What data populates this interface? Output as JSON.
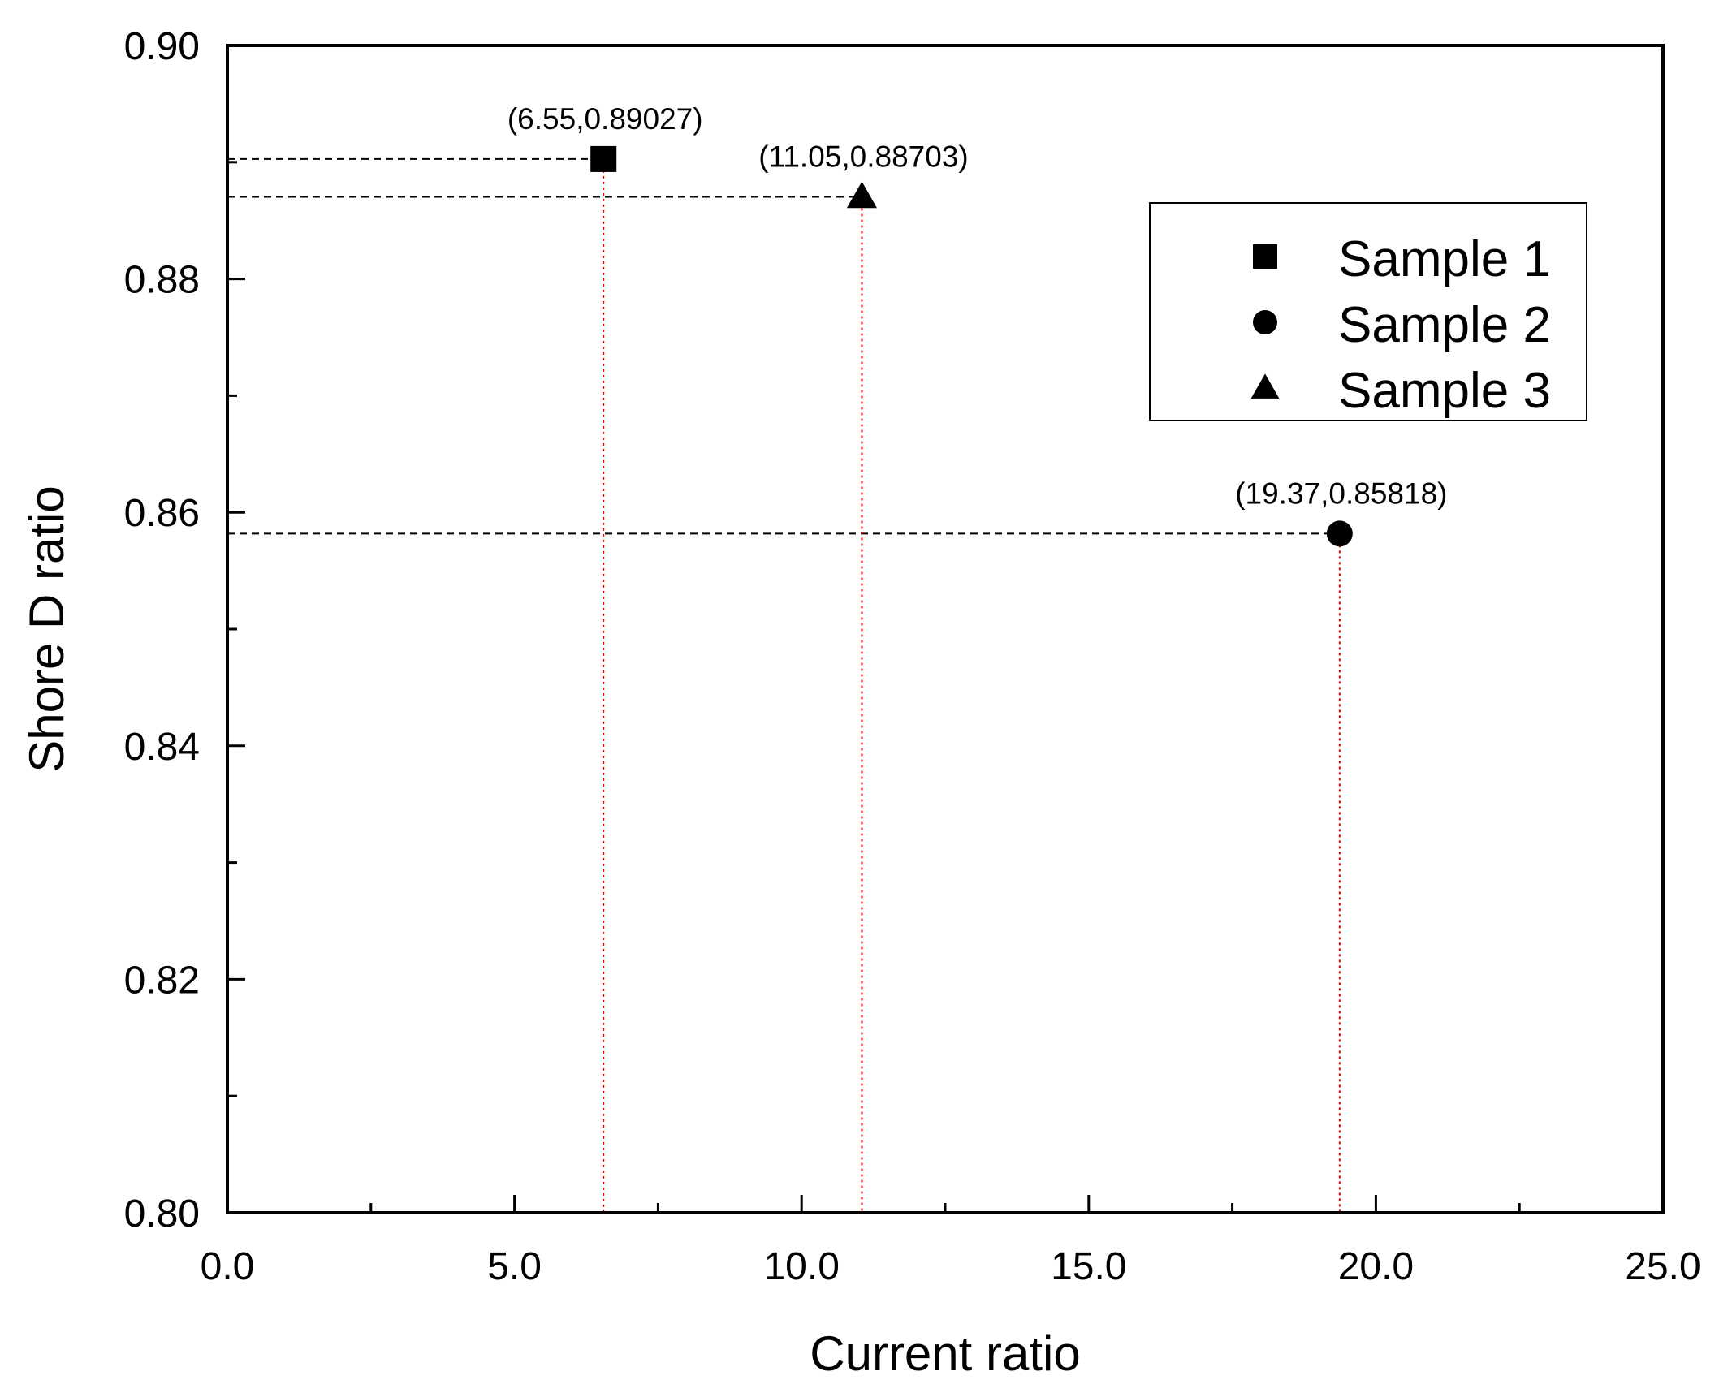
{
  "chart_data": {
    "type": "scatter",
    "title": "",
    "xlabel": "Current ratio",
    "ylabel": "Shore D ratio",
    "xlim": [
      0,
      25
    ],
    "ylim": [
      0.8,
      0.9
    ],
    "x_ticks": [
      {
        "value": 0,
        "label": "0.0"
      },
      {
        "value": 5,
        "label": "5.0"
      },
      {
        "value": 10,
        "label": "10.0"
      },
      {
        "value": 15,
        "label": "15.0"
      },
      {
        "value": 20,
        "label": "20.0"
      },
      {
        "value": 25,
        "label": "25.0"
      }
    ],
    "x_minor_ticks": [
      2.5,
      7.5,
      12.5,
      17.5,
      22.5
    ],
    "y_ticks": [
      {
        "value": 0.8,
        "label": "0.80"
      },
      {
        "value": 0.82,
        "label": "0.82"
      },
      {
        "value": 0.84,
        "label": "0.84"
      },
      {
        "value": 0.86,
        "label": "0.86"
      },
      {
        "value": 0.88,
        "label": "0.88"
      },
      {
        "value": 0.9,
        "label": "0.90"
      }
    ],
    "y_minor_ticks": [
      0.81,
      0.83,
      0.85,
      0.87,
      0.89
    ],
    "grid": false,
    "legend_position": "top-right",
    "series": [
      {
        "name": "Sample 1",
        "marker": "square",
        "color": "#000000",
        "points": [
          {
            "x": 6.55,
            "y": 0.89027,
            "label": "(6.55,0.89027)"
          }
        ]
      },
      {
        "name": "Sample 2",
        "marker": "circle",
        "color": "#000000",
        "points": [
          {
            "x": 19.37,
            "y": 0.85818,
            "label": "(19.37,0.85818)"
          }
        ]
      },
      {
        "name": "Sample 3",
        "marker": "triangle",
        "color": "#000000",
        "points": [
          {
            "x": 11.05,
            "y": 0.88703,
            "label": "(11.05,0.88703)"
          }
        ]
      }
    ],
    "guide_colors": {
      "horizontal": "#000000",
      "vertical": "#e00000"
    }
  }
}
